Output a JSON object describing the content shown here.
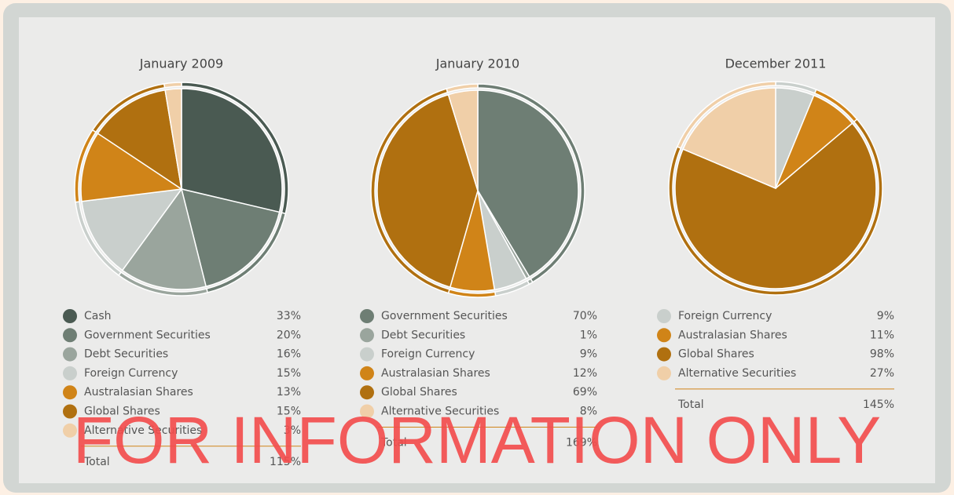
{
  "chart_data": [
    {
      "type": "pie",
      "title": "January 2009",
      "categories": [
        "Cash",
        "Government Securities",
        "Debt Securities",
        "Foreign Currency",
        "Australasian Shares",
        "Global Shares",
        "Alternative Securities"
      ],
      "values": [
        33,
        20,
        16,
        15,
        13,
        15,
        3
      ],
      "value_labels": [
        "33%",
        "20%",
        "16%",
        "15%",
        "13%",
        "15%",
        "3%"
      ],
      "colors": [
        "#4a5a52",
        "#6e7e74",
        "#9aa59d",
        "#c9cfcc",
        "#d08418",
        "#b07010",
        "#f0cfa8"
      ],
      "total": {
        "label": "Total",
        "value": 115,
        "value_label": "115%"
      }
    },
    {
      "type": "pie",
      "title": "January 2010",
      "categories": [
        "Government Securities",
        "Debt Securities",
        "Foreign Currency",
        "Australasian Shares",
        "Global Shares",
        "Alternative Securities"
      ],
      "values": [
        70,
        1,
        9,
        12,
        69,
        8
      ],
      "value_labels": [
        "70%",
        "1%",
        "9%",
        "12%",
        "69%",
        "8%"
      ],
      "colors": [
        "#6e7e74",
        "#9aa59d",
        "#c9cfcc",
        "#d08418",
        "#b07010",
        "#f0cfa8"
      ],
      "total": {
        "label": "Total",
        "value": 169,
        "value_label": "169%"
      }
    },
    {
      "type": "pie",
      "title": "December 2011",
      "categories": [
        "Foreign Currency",
        "Australasian Shares",
        "Global Shares",
        "Alternative Securities"
      ],
      "values": [
        9,
        11,
        98,
        27
      ],
      "value_labels": [
        "9%",
        "11%",
        "98%",
        "27%"
      ],
      "colors": [
        "#c9cfcc",
        "#d08418",
        "#b07010",
        "#f0cfa8"
      ],
      "total": {
        "label": "Total",
        "value": 145,
        "value_label": "145%"
      }
    }
  ],
  "watermark": "FOR INFORMATION ONLY"
}
